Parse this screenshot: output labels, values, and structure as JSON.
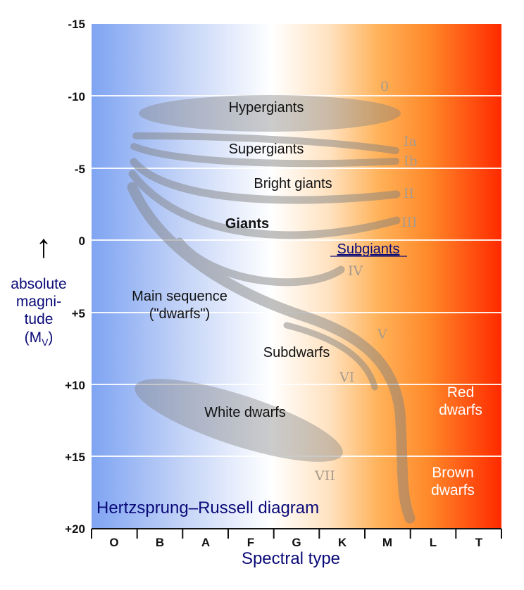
{
  "diagram": {
    "title": "Hertzsprung–Russell diagram",
    "x_axis": {
      "label": "Spectral type",
      "ticks": [
        "O",
        "B",
        "A",
        "F",
        "G",
        "K",
        "M",
        "L",
        "T"
      ]
    },
    "y_axis": {
      "label_lines": [
        "absolute",
        "magni-",
        "tude"
      ],
      "symbol": "M",
      "symbol_subscript": "V",
      "arrow": "↑",
      "ticks": [
        "-15",
        "-10",
        "-5",
        "0",
        "+5",
        "+10",
        "+15",
        "+20"
      ]
    },
    "regions": {
      "hypergiants": "Hypergiants",
      "supergiants": "Supergiants",
      "bright_giants": "Bright giants",
      "giants": "Giants",
      "subgiants": "Subgiants",
      "main_sequence_line1": "Main sequence",
      "main_sequence_line2": "(\"dwarfs\")",
      "subdwarfs": "Subdwarfs",
      "white_dwarfs": "White dwarfs",
      "red_dwarfs_line1": "Red",
      "red_dwarfs_line2": "dwarfs",
      "brown_dwarfs_line1": "Brown",
      "brown_dwarfs_line2": "dwarfs"
    },
    "luminosity_classes": {
      "c0": "0",
      "ia": "Ia",
      "ib": "Ib",
      "ii": "II",
      "iii": "III",
      "iv": "IV",
      "v": "V",
      "vi": "VI",
      "vii": "VII"
    },
    "colors": {
      "hot": "#7fa4f2",
      "white": "#ffffff",
      "mid": "#ffb25a",
      "cool": "#ff2a00",
      "band": "#808080",
      "text_navy": "#0a0a78",
      "class_label": "#a89a8c"
    }
  }
}
